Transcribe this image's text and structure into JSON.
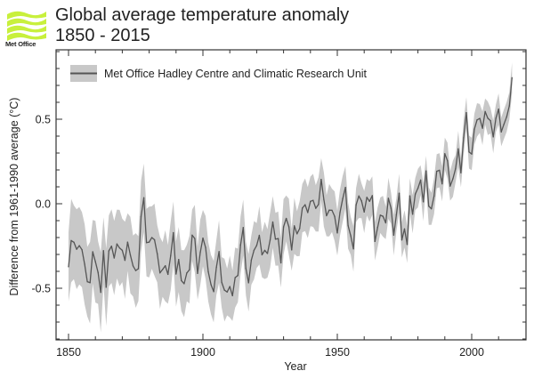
{
  "header": {
    "logo_text": "Met Office",
    "logo_color": "#c8f03c",
    "title": "Global average temperature anomaly",
    "subtitle": "1850 - 2015"
  },
  "chart_data": {
    "type": "line",
    "title": "Global average temperature anomaly",
    "subtitle": "1850 - 2015",
    "xlabel": "Year",
    "ylabel": "Difference from 1961-1990 average (°C)",
    "xlim": [
      1845,
      2020
    ],
    "ylim": [
      -0.8,
      0.9
    ],
    "x_ticks": [
      1850,
      1900,
      1950,
      2000
    ],
    "x_tick_labels": [
      "1850",
      "1900",
      "1950",
      "2000"
    ],
    "x_minor_step": 10,
    "y_ticks": [
      -0.5,
      0.0,
      0.5
    ],
    "y_tick_labels": [
      "-0.5",
      "0.0",
      "0.5"
    ],
    "y_minor_step": 0.1,
    "grid": false,
    "legend": {
      "position": "top-left",
      "entries": [
        "Met Office Hadley Centre and Climatic Research Unit"
      ]
    },
    "line_color": "#555555",
    "band_color": "#c8c8c8",
    "series": [
      {
        "name": "Met Office Hadley Centre and Climatic Research Unit",
        "x_start": 1850,
        "x_end": 2015,
        "values": [
          -0.373,
          -0.218,
          -0.228,
          -0.269,
          -0.248,
          -0.272,
          -0.358,
          -0.461,
          -0.467,
          -0.284,
          -0.343,
          -0.407,
          -0.524,
          -0.278,
          -0.494,
          -0.279,
          -0.251,
          -0.321,
          -0.238,
          -0.262,
          -0.276,
          -0.335,
          -0.227,
          -0.304,
          -0.368,
          -0.395,
          -0.384,
          -0.075,
          0.035,
          -0.23,
          -0.227,
          -0.2,
          -0.213,
          -0.296,
          -0.409,
          -0.389,
          -0.367,
          -0.418,
          -0.307,
          -0.171,
          -0.416,
          -0.33,
          -0.455,
          -0.473,
          -0.41,
          -0.39,
          -0.186,
          -0.206,
          -0.412,
          -0.289,
          -0.203,
          -0.259,
          -0.402,
          -0.479,
          -0.52,
          -0.377,
          -0.283,
          -0.465,
          -0.511,
          -0.522,
          -0.49,
          -0.544,
          -0.437,
          -0.424,
          -0.244,
          -0.141,
          -0.383,
          -0.468,
          -0.333,
          -0.275,
          -0.247,
          -0.187,
          -0.302,
          -0.276,
          -0.294,
          -0.215,
          -0.108,
          -0.21,
          -0.206,
          -0.35,
          -0.137,
          -0.087,
          -0.137,
          -0.273,
          -0.131,
          -0.178,
          -0.147,
          -0.026,
          -0.006,
          -0.052,
          0.014,
          0.02,
          -0.027,
          -0.004,
          0.144,
          0.025,
          -0.071,
          -0.038,
          -0.039,
          -0.074,
          -0.173,
          -0.052,
          0.028,
          0.097,
          -0.129,
          -0.19,
          -0.267,
          -0.007,
          0.046,
          0.017,
          -0.049,
          0.038,
          0.014,
          0.048,
          -0.223,
          -0.14,
          -0.068,
          -0.074,
          -0.113,
          0.032,
          -0.027,
          -0.186,
          -0.065,
          0.062,
          -0.214,
          -0.149,
          -0.241,
          0.047,
          -0.062,
          0.057,
          0.092,
          0.14,
          0.011,
          0.194,
          -0.014,
          -0.03,
          0.045,
          0.192,
          0.198,
          0.118,
          0.296,
          0.254,
          0.105,
          0.148,
          0.208,
          0.325,
          0.183,
          0.39,
          0.539,
          0.306,
          0.294,
          0.441,
          0.496,
          0.505,
          0.447,
          0.545,
          0.506,
          0.491,
          0.395,
          0.506,
          0.56,
          0.425,
          0.47,
          0.514,
          0.579,
          0.745
        ],
        "uncertainty_halfwidth_anchors": {
          "years": [
            1850,
            1860,
            1880,
            1900,
            1920,
            1945,
            1960,
            1980,
            2000,
            2015
          ],
          "values": [
            0.22,
            0.21,
            0.19,
            0.17,
            0.15,
            0.14,
            0.11,
            0.1,
            0.09,
            0.08
          ]
        }
      }
    ]
  }
}
